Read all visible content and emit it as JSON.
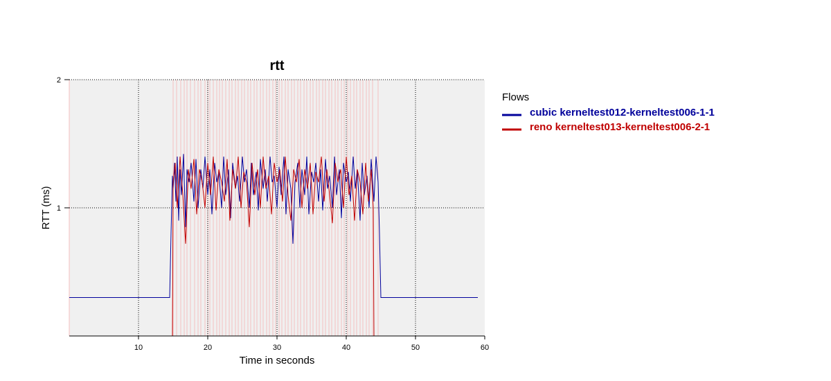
{
  "chart_data": {
    "type": "line",
    "title": "rtt",
    "xlabel": "Time in seconds",
    "ylabel": "RTT (ms)",
    "xlim": [
      0,
      60
    ],
    "ylim": [
      0,
      2
    ],
    "x_ticks": [
      10,
      20,
      30,
      40,
      50,
      60
    ],
    "y_ticks": [
      1,
      2
    ],
    "grid": true,
    "legend": {
      "title": "Flows",
      "placement": "right"
    },
    "series": [
      {
        "name": "cubic kerneltest012-kerneltest006-1-1",
        "color": "#00009b",
        "x": [
          0,
          4,
          8,
          12,
          14.5,
          14.7,
          14.9,
          15.0,
          15.2,
          15.4,
          15.6,
          15.8,
          16.0,
          16.2,
          16.5,
          16.8,
          17.0,
          17.3,
          17.6,
          18.0,
          18.3,
          18.6,
          19.0,
          19.3,
          19.6,
          20.0,
          20.3,
          20.6,
          21.0,
          21.3,
          21.6,
          22.0,
          22.3,
          22.6,
          23.0,
          23.3,
          23.6,
          24.0,
          24.3,
          24.6,
          25.0,
          25.3,
          25.6,
          26.0,
          26.3,
          26.6,
          27.0,
          27.3,
          27.6,
          28.0,
          28.3,
          28.6,
          29.0,
          29.3,
          29.6,
          30.0,
          30.3,
          30.6,
          31.0,
          31.3,
          31.6,
          32.0,
          32.3,
          32.6,
          33.0,
          33.3,
          33.6,
          34.0,
          34.3,
          34.6,
          35.0,
          35.3,
          35.6,
          36.0,
          36.3,
          36.6,
          37.0,
          37.3,
          37.6,
          38.0,
          38.3,
          38.6,
          39.0,
          39.3,
          39.6,
          40.0,
          40.3,
          40.6,
          41.0,
          41.3,
          41.6,
          42.0,
          42.3,
          42.6,
          43.0,
          43.3,
          43.6,
          44.0,
          44.3,
          44.6,
          44.8,
          45.0,
          45.3,
          48,
          52,
          56,
          59
        ],
        "y": [
          0.3,
          0.3,
          0.3,
          0.3,
          0.3,
          0.8,
          1.25,
          1.15,
          1.35,
          1.05,
          1.4,
          0.9,
          1.3,
          1.1,
          1.42,
          0.85,
          1.3,
          1.2,
          1.35,
          1.05,
          1.38,
          1.0,
          1.3,
          1.15,
          1.4,
          1.1,
          1.3,
          0.95,
          1.35,
          1.2,
          1.28,
          1.0,
          1.4,
          1.1,
          1.3,
          0.92,
          1.35,
          1.15,
          1.25,
          1.05,
          1.4,
          1.2,
          1.3,
          1.0,
          1.35,
          1.1,
          1.28,
          0.98,
          1.38,
          1.15,
          1.3,
          1.05,
          1.4,
          1.2,
          1.25,
          1.0,
          1.32,
          1.1,
          1.4,
          0.95,
          1.3,
          1.15,
          0.72,
          1.2,
          1.35,
          1.0,
          1.3,
          1.1,
          1.4,
          0.95,
          1.28,
          1.2,
          1.35,
          1.05,
          1.3,
          0.98,
          1.38,
          1.15,
          1.25,
          1.0,
          1.4,
          1.1,
          1.3,
          0.92,
          1.35,
          1.2,
          1.28,
          1.05,
          1.4,
          1.15,
          1.3,
          0.9,
          1.35,
          1.1,
          1.25,
          1.0,
          1.38,
          1.05,
          1.4,
          1.2,
          0.8,
          0.3,
          0.3,
          0.3,
          0.3,
          0.3,
          0.3
        ]
      },
      {
        "name": "reno kerneltest013-kerneltest006-2-1",
        "color": "#c00000",
        "x": [
          0,
          14.9,
          15.0,
          15.3,
          15.6,
          16.0,
          16.4,
          16.8,
          17.2,
          17.6,
          18.0,
          18.4,
          18.8,
          19.2,
          19.6,
          20.0,
          20.4,
          20.8,
          21.2,
          21.6,
          22.0,
          22.4,
          22.8,
          23.2,
          23.6,
          24.0,
          24.4,
          24.8,
          25.2,
          25.6,
          26.0,
          26.4,
          26.8,
          27.2,
          27.6,
          28.0,
          28.4,
          28.8,
          29.2,
          29.6,
          30.0,
          30.4,
          30.8,
          31.2,
          31.6,
          32.0,
          32.4,
          32.8,
          33.2,
          33.6,
          34.0,
          34.4,
          34.8,
          35.2,
          35.6,
          36.0,
          36.4,
          36.8,
          37.2,
          37.6,
          38.0,
          38.4,
          38.8,
          39.2,
          39.6,
          40.0,
          40.4,
          40.8,
          41.2,
          41.6,
          42.0,
          42.4,
          42.8,
          43.2,
          43.6,
          43.9,
          44.0,
          60
        ],
        "y": [
          0,
          0,
          1.2,
          1.35,
          1.0,
          1.4,
          1.1,
          0.72,
          1.3,
          1.15,
          1.38,
          0.95,
          1.3,
          1.2,
          1.0,
          1.35,
          1.1,
          1.4,
          0.98,
          1.3,
          1.2,
          1.05,
          1.38,
          0.9,
          1.3,
          1.15,
          1.4,
          1.0,
          1.28,
          1.2,
          0.85,
          1.35,
          1.1,
          1.3,
          1.0,
          1.4,
          1.15,
          1.25,
          0.95,
          1.35,
          1.2,
          1.3,
          1.05,
          1.4,
          1.1,
          0.9,
          1.3,
          1.2,
          1.38,
          1.0,
          1.3,
          1.15,
          1.35,
          0.95,
          1.28,
          1.2,
          1.4,
          1.05,
          1.3,
          1.1,
          0.88,
          1.35,
          1.2,
          1.3,
          1.0,
          1.4,
          1.1,
          1.25,
          0.9,
          1.3,
          1.2,
          0.95,
          1.35,
          1.05,
          1.3,
          1.0,
          0,
          0
        ]
      }
    ],
    "vertical_marker_lines": {
      "color": "#f5c0c0",
      "x": [
        0,
        15.0,
        15.5,
        16.1,
        16.6,
        17.0,
        17.5,
        18.1,
        18.6,
        19.0,
        19.6,
        20.0,
        20.3,
        20.8,
        21.3,
        21.7,
        22.1,
        22.6,
        23.1,
        23.5,
        24.0,
        24.4,
        24.9,
        25.3,
        25.8,
        26.2,
        26.7,
        27.1,
        27.6,
        28.0,
        28.5,
        28.9,
        29.4,
        29.8,
        30.3,
        30.7,
        31.2,
        31.6,
        32.1,
        32.5,
        33.0,
        33.4,
        33.9,
        34.3,
        34.8,
        35.2,
        35.7,
        36.1,
        36.6,
        37.0,
        37.5,
        37.9,
        38.4,
        38.8,
        39.3,
        39.7,
        40.2,
        40.6,
        41.1,
        41.5,
        42.0,
        42.4,
        42.9,
        43.3,
        43.8,
        44.6
      ]
    }
  }
}
